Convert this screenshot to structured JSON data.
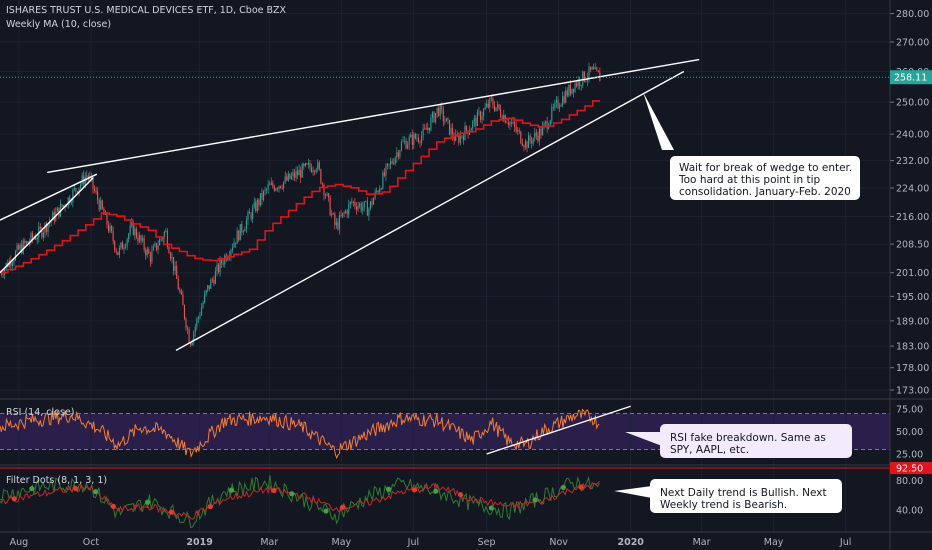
{
  "chart_data": {
    "type": "candlestick",
    "title": "ISHARES TRUST U.S. MEDICAL DEVICES ETF, 1D, Cboe BZX",
    "overlay_label": "Weekly MA (10, close)",
    "x_ticks": [
      "Aug",
      "Oct",
      "2019",
      "Mar",
      "May",
      "Jul",
      "Sep",
      "Nov",
      "2020",
      "Mar",
      "May",
      "Jul"
    ],
    "price_ticks": [
      "280.00",
      "270.00",
      "260.00",
      "250.00",
      "240.00",
      "232.00",
      "224.00",
      "216.00",
      "208.50",
      "201.00",
      "195.00",
      "189.00",
      "183.00",
      "178.00",
      "173.00"
    ],
    "price_ylim": [
      173,
      282
    ],
    "y_scale": "log",
    "last_price": "258.11",
    "price_path": [
      [
        "2018-07-16",
        201
      ],
      [
        "2018-08-01",
        207
      ],
      [
        "2018-08-20",
        212
      ],
      [
        "2018-09-10",
        220
      ],
      [
        "2018-09-28",
        228
      ],
      [
        "2018-10-10",
        218
      ],
      [
        "2018-10-24",
        206
      ],
      [
        "2018-11-05",
        213
      ],
      [
        "2018-11-20",
        205
      ],
      [
        "2018-12-03",
        212
      ],
      [
        "2018-12-12",
        200
      ],
      [
        "2018-12-24",
        184
      ],
      [
        "2019-01-08",
        197
      ],
      [
        "2019-01-22",
        205
      ],
      [
        "2019-02-12",
        216
      ],
      [
        "2019-02-28",
        224
      ],
      [
        "2019-03-15",
        226
      ],
      [
        "2019-03-29",
        229
      ],
      [
        "2019-04-10",
        231
      ],
      [
        "2019-04-26",
        213
      ],
      [
        "2019-05-10",
        220
      ],
      [
        "2019-05-24",
        218
      ],
      [
        "2019-06-07",
        228
      ],
      [
        "2019-06-21",
        237
      ],
      [
        "2019-07-10",
        240
      ],
      [
        "2019-07-22",
        248
      ],
      [
        "2019-08-06",
        238
      ],
      [
        "2019-08-20",
        243
      ],
      [
        "2019-09-05",
        250
      ],
      [
        "2019-09-20",
        244
      ],
      [
        "2019-10-04",
        237
      ],
      [
        "2019-10-18",
        241
      ],
      [
        "2019-11-01",
        250
      ],
      [
        "2019-11-15",
        256
      ],
      [
        "2019-11-29",
        260
      ],
      [
        "2019-12-06",
        258
      ]
    ],
    "ma_path": [
      [
        "2018-07-16",
        201
      ],
      [
        "2018-08-01",
        203
      ],
      [
        "2018-08-20",
        206
      ],
      [
        "2018-09-10",
        210
      ],
      [
        "2018-09-28",
        214
      ],
      [
        "2018-10-10",
        217
      ],
      [
        "2018-10-24",
        216
      ],
      [
        "2018-11-05",
        214
      ],
      [
        "2018-11-20",
        212
      ],
      [
        "2018-12-03",
        208
      ],
      [
        "2018-12-12",
        207
      ],
      [
        "2018-12-24",
        205
      ],
      [
        "2019-01-08",
        204
      ],
      [
        "2019-01-22",
        205
      ],
      [
        "2019-02-12",
        207
      ],
      [
        "2019-02-28",
        213
      ],
      [
        "2019-03-15",
        217
      ],
      [
        "2019-03-29",
        221
      ],
      [
        "2019-04-10",
        224
      ],
      [
        "2019-04-26",
        225
      ],
      [
        "2019-05-10",
        224
      ],
      [
        "2019-05-24",
        222
      ],
      [
        "2019-06-07",
        223
      ],
      [
        "2019-06-21",
        228
      ],
      [
        "2019-07-10",
        234
      ],
      [
        "2019-07-22",
        238
      ],
      [
        "2019-08-06",
        240
      ],
      [
        "2019-08-20",
        241
      ],
      [
        "2019-09-05",
        244
      ],
      [
        "2019-09-20",
        245
      ],
      [
        "2019-10-04",
        243
      ],
      [
        "2019-10-18",
        242
      ],
      [
        "2019-11-01",
        244
      ],
      [
        "2019-11-15",
        247
      ],
      [
        "2019-11-29",
        250
      ],
      [
        "2019-12-06",
        253
      ]
    ],
    "trendlines": [
      {
        "from": [
          "2018-07-16",
          215
        ],
        "to": [
          "2018-10-06",
          228
        ]
      },
      {
        "from": [
          "2018-08-25",
          228.5
        ],
        "to": [
          "2020-02-28",
          264
        ]
      },
      {
        "from": [
          "2018-12-12",
          182
        ],
        "to": [
          "2020-02-15",
          260
        ]
      },
      {
        "from": [
          "2018-07-16",
          201
        ],
        "to": [
          "2018-10-03",
          227
        ]
      }
    ],
    "rsi": {
      "label": "RSI (14, close)",
      "ticks": [
        "75.00",
        "50.00",
        "25.00"
      ],
      "ylim": [
        15,
        85
      ],
      "band": [
        30,
        70
      ],
      "path": [
        [
          "2018-07-16",
          55
        ],
        [
          "2018-08-10",
          62
        ],
        [
          "2018-09-15",
          68
        ],
        [
          "2018-10-05",
          55
        ],
        [
          "2018-10-24",
          35
        ],
        [
          "2018-11-12",
          55
        ],
        [
          "2018-12-03",
          50
        ],
        [
          "2018-12-24",
          25
        ],
        [
          "2019-01-22",
          62
        ],
        [
          "2019-02-28",
          66
        ],
        [
          "2019-03-29",
          55
        ],
        [
          "2019-04-26",
          28
        ],
        [
          "2019-05-24",
          48
        ],
        [
          "2019-06-21",
          65
        ],
        [
          "2019-07-22",
          62
        ],
        [
          "2019-08-20",
          40
        ],
        [
          "2019-09-05",
          60
        ],
        [
          "2019-09-20",
          38
        ],
        [
          "2019-10-04",
          35
        ],
        [
          "2019-10-18",
          50
        ],
        [
          "2019-11-15",
          68
        ],
        [
          "2019-11-29",
          66
        ],
        [
          "2019-12-06",
          58
        ]
      ],
      "trendline": {
        "from": [
          "2019-09-01",
          25
        ],
        "to": [
          "2020-01-01",
          78
        ]
      }
    },
    "filter_dots": {
      "label": "Filter Dots (8, 1, 3, 1)",
      "ticks": [
        "80.00",
        "40.00"
      ],
      "marker": "92.50",
      "ylim": [
        10,
        100
      ],
      "red_path": [
        [
          "2018-07-16",
          52
        ],
        [
          "2018-08-20",
          62
        ],
        [
          "2018-09-28",
          72
        ],
        [
          "2018-10-24",
          40
        ],
        [
          "2018-11-20",
          45
        ],
        [
          "2018-12-24",
          30
        ],
        [
          "2019-01-22",
          55
        ],
        [
          "2019-02-28",
          68
        ],
        [
          "2019-03-29",
          60
        ],
        [
          "2019-04-26",
          42
        ],
        [
          "2019-05-24",
          50
        ],
        [
          "2019-06-21",
          65
        ],
        [
          "2019-07-22",
          72
        ],
        [
          "2019-08-20",
          55
        ],
        [
          "2019-09-20",
          45
        ],
        [
          "2019-10-18",
          52
        ],
        [
          "2019-11-15",
          70
        ],
        [
          "2019-12-06",
          75
        ]
      ],
      "green_path": [
        [
          "2018-07-16",
          60
        ],
        [
          "2018-08-20",
          72
        ],
        [
          "2018-09-28",
          76
        ],
        [
          "2018-10-24",
          35
        ],
        [
          "2018-11-20",
          52
        ],
        [
          "2018-12-24",
          25
        ],
        [
          "2019-01-22",
          65
        ],
        [
          "2019-02-28",
          78
        ],
        [
          "2019-03-29",
          55
        ],
        [
          "2019-04-26",
          32
        ],
        [
          "2019-05-24",
          58
        ],
        [
          "2019-06-21",
          75
        ],
        [
          "2019-07-22",
          65
        ],
        [
          "2019-08-20",
          48
        ],
        [
          "2019-09-20",
          38
        ],
        [
          "2019-10-18",
          58
        ],
        [
          "2019-11-15",
          78
        ],
        [
          "2019-12-06",
          70
        ]
      ],
      "red_dots": [
        "2018-07-28",
        "2018-09-18",
        "2018-10-20",
        "2018-12-08",
        "2019-01-10",
        "2019-03-05",
        "2019-05-02",
        "2019-07-02",
        "2019-08-10",
        "2019-11-20"
      ],
      "green_dots": [
        "2018-08-12",
        "2018-10-05",
        "2018-11-18",
        "2019-01-28",
        "2019-03-20",
        "2019-04-18",
        "2019-06-10",
        "2019-07-20",
        "2019-09-05",
        "2019-10-12",
        "2019-11-05"
      ]
    },
    "colors": {
      "background": "#131722",
      "up": "#26a69a",
      "down": "#ef5350",
      "ma": "#e3121b",
      "rsi_line": "#f57c2e",
      "rsi_band": "#2a1f4a",
      "last_price_bg": "#26a69a",
      "marker_bg": "#e3121b"
    }
  },
  "annotations": {
    "wedge_note": [
      "Wait for break of wedge to enter.",
      "Too hard at this point in tip",
      "consolidation. January-Feb. 2020"
    ],
    "rsi_note": [
      "RSI fake breakdown.  Same as",
      "SPY, AAPL, etc."
    ],
    "dots_note": [
      "Next Daily trend is Bullish.  Next",
      "Weekly trend is Bearish."
    ]
  }
}
